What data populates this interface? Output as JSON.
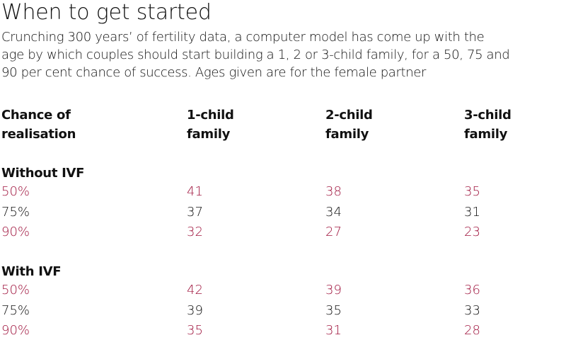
{
  "colors": {
    "text": "#111111",
    "accent": "#a0163f"
  },
  "chart_data": {
    "type": "table",
    "title": "When to get started",
    "subtitle_lines": [
      "Crunching 300 years’ of fertility data, a computer model has come up with the",
      "age by which couples should start building a 1, 2 or 3-child family, for a 50, 75 and",
      "90 per cent chance of success. Ages given are for the female partner"
    ],
    "columns": [
      {
        "line1": "Chance of",
        "line2": "realisation"
      },
      {
        "line1": "1-child",
        "line2": "family"
      },
      {
        "line1": "2-child",
        "line2": "family"
      },
      {
        "line1": "3-child",
        "line2": "family"
      }
    ],
    "groups": [
      {
        "title": "Without IVF",
        "rows": [
          {
            "chance": "50%",
            "values": [
              "41",
              "38",
              "35"
            ],
            "accent": true
          },
          {
            "chance": "75%",
            "values": [
              "37",
              "34",
              "31"
            ],
            "accent": false
          },
          {
            "chance": "90%",
            "values": [
              "32",
              "27",
              "23"
            ],
            "accent": true
          }
        ]
      },
      {
        "title": "With IVF",
        "rows": [
          {
            "chance": "50%",
            "values": [
              "42",
              "39",
              "36"
            ],
            "accent": true
          },
          {
            "chance": "75%",
            "values": [
              "39",
              "35",
              "33"
            ],
            "accent": false
          },
          {
            "chance": "90%",
            "values": [
              "35",
              "31",
              "28"
            ],
            "accent": true
          }
        ]
      }
    ]
  }
}
